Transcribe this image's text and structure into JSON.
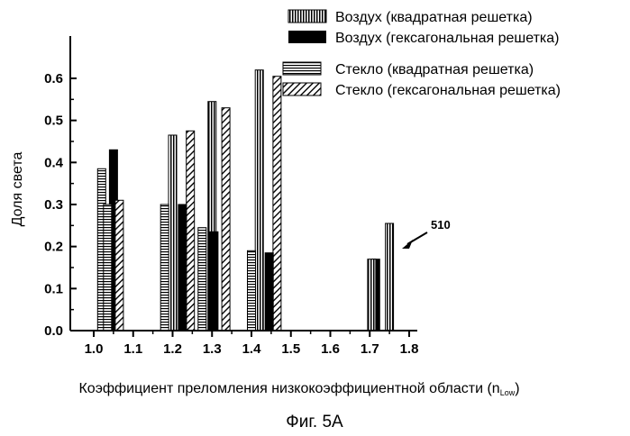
{
  "chart_data": {
    "type": "bar",
    "xlabel_main": "Коэффициент преломления низкокоэффициентной области (n",
    "xlabel_sub": "Low",
    "xlabel_close": ")",
    "ylabel": "Доля света",
    "xlim": [
      0.9,
      1.85
    ],
    "ylim": [
      0.0,
      0.65
    ],
    "x_ticks": [
      "1.0",
      "1.1",
      "1.2",
      "1.3",
      "1.4",
      "1.5",
      "1.6",
      "1.7",
      "1.8"
    ],
    "y_ticks": [
      "0.0",
      "0.1",
      "0.2",
      "0.3",
      "0.4",
      "0.5",
      "0.6"
    ],
    "legend_position": "top-right",
    "series": [
      {
        "name": "Воздух (квадратная решетка)",
        "pattern": "vertical-stripes",
        "x": [
          1.2,
          1.3,
          1.42,
          1.75
        ],
        "values": [
          0.465,
          0.545,
          0.62,
          0.255
        ]
      },
      {
        "name": "Воздух (гексагональная решетка)",
        "pattern": "solid",
        "x": [
          1.05,
          1.225,
          1.305,
          1.445,
          1.715
        ],
        "values": [
          0.43,
          0.3,
          0.235,
          0.185,
          0.17
        ]
      },
      {
        "name": "Стекло (квадратная решетка)",
        "pattern": "horizontal-stripes",
        "x": [
          1.02,
          1.18,
          1.275,
          1.4
        ],
        "values": [
          0.385,
          0.3,
          0.245,
          0.19
        ]
      },
      {
        "name": "Стекло (гексагональная решетка)",
        "pattern": "diagonal-hatch",
        "x": [
          1.065,
          1.245,
          1.335,
          1.465
        ],
        "values": [
          0.31,
          0.475,
          0.53,
          0.605
        ]
      }
    ],
    "extra_bars": [
      {
        "pattern": "horizontal-stripes",
        "x": 1.035,
        "value": 0.3
      },
      {
        "pattern": "vertical-stripes",
        "x": 1.705,
        "value": 0.17
      }
    ],
    "annotation": "510",
    "caption": "Фиг. 5А"
  }
}
